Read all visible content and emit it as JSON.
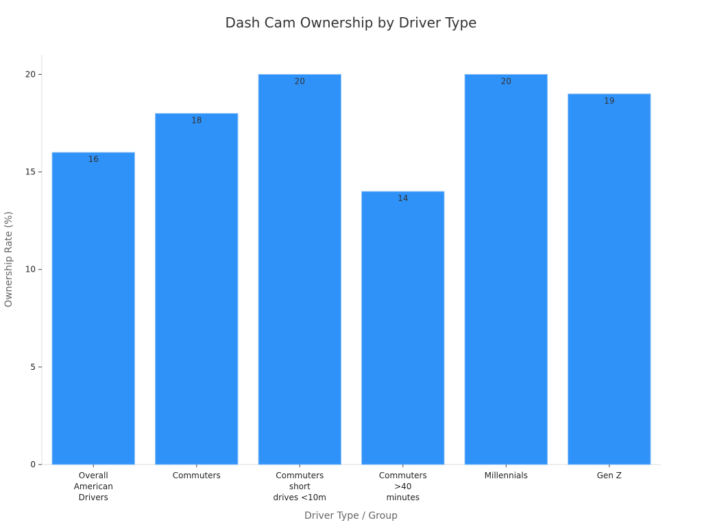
{
  "chart_data": {
    "type": "bar",
    "title": "Dash Cam Ownership by Driver Type",
    "xlabel": "Driver Type / Group",
    "ylabel": "Ownership Rate (%)",
    "ylim": [
      0,
      21
    ],
    "yticks": [
      0,
      5,
      10,
      15,
      20
    ],
    "grid": false,
    "bar_color": "#2f92f8",
    "bar_edge_color": "#8cc0f5",
    "categories": [
      [
        "Overall",
        "American",
        "Drivers"
      ],
      [
        "Commuters"
      ],
      [
        "Commuters",
        "short",
        "drives <10m"
      ],
      [
        "Commuters",
        ">40",
        "minutes"
      ],
      [
        "Millennials"
      ],
      [
        "Gen Z"
      ]
    ],
    "values": [
      16,
      18,
      20,
      14,
      20,
      19
    ],
    "data_labels": [
      "16",
      "18",
      "20",
      "14",
      "20",
      "19"
    ]
  }
}
